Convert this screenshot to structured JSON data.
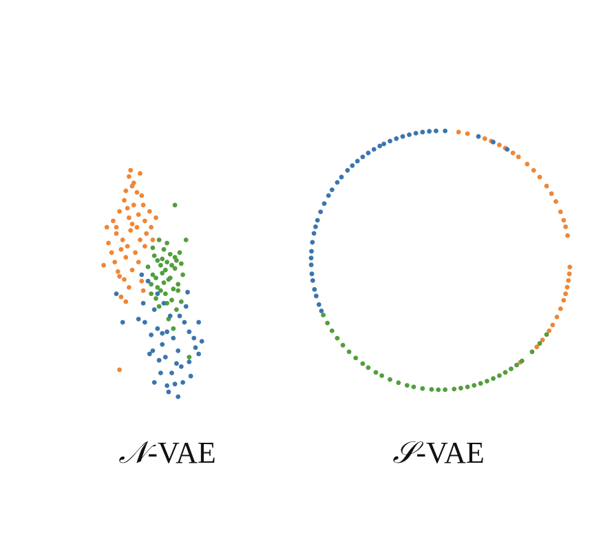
{
  "colors": {
    "orange": "#ef8636",
    "green": "#519e3e",
    "blue": "#3b75af",
    "background": "#ffffff",
    "text": "#111111"
  },
  "chart_data": [
    {
      "type": "scatter",
      "name_symbol": "𝒩",
      "name_suffix": "-VAE",
      "grid": false,
      "legend": "none",
      "series": [
        {
          "color_key": "orange",
          "points": [
            [
              -1.3,
              1.0
            ],
            [
              -1.1,
              1.2
            ],
            [
              -1.0,
              0.8
            ],
            [
              -1.25,
              0.5
            ],
            [
              -0.9,
              1.5
            ],
            [
              -0.75,
              1.85
            ],
            [
              -0.7,
              2.15
            ],
            [
              -0.65,
              1.6
            ],
            [
              -0.85,
              0.3
            ],
            [
              -1.15,
              0.2
            ],
            [
              -0.55,
              0.9
            ],
            [
              -0.6,
              1.3
            ],
            [
              -0.8,
              0.6
            ],
            [
              -1.05,
              -0.1
            ],
            [
              -0.95,
              -0.4
            ],
            [
              -1.4,
              -0.2
            ],
            [
              -0.45,
              1.7
            ],
            [
              -0.5,
              2.3
            ],
            [
              -0.3,
              1.4
            ],
            [
              -0.35,
              1.0
            ],
            [
              -0.25,
              0.6
            ],
            [
              -0.4,
              0.2
            ],
            [
              -0.7,
              0.05
            ],
            [
              -0.9,
              -0.55
            ],
            [
              -0.6,
              2.6
            ],
            [
              -0.55,
              2.8
            ],
            [
              -0.45,
              2.4
            ],
            [
              -0.35,
              2.1
            ],
            [
              -0.2,
              2.0
            ],
            [
              -0.15,
              1.7
            ],
            [
              -0.1,
              1.2
            ],
            [
              -0.05,
              0.8
            ],
            [
              -0.1,
              0.4
            ],
            [
              -0.3,
              -0.1
            ],
            [
              -0.5,
              -0.35
            ],
            [
              -0.75,
              -0.65
            ],
            [
              -0.6,
              -0.9
            ],
            [
              -0.7,
              -1.35
            ],
            [
              -0.85,
              -1.2
            ],
            [
              -0.9,
              -3.5
            ],
            [
              -0.2,
              -0.7
            ],
            [
              -0.15,
              -1.0
            ],
            [
              0.05,
              1.5
            ],
            [
              0.1,
              1.0
            ],
            [
              0.15,
              0.6
            ],
            [
              0.25,
              1.3
            ],
            [
              -0.25,
              2.7
            ],
            [
              -0.5,
              1.1
            ],
            [
              -0.65,
              0.4
            ],
            [
              -1.0,
              1.0
            ]
          ]
        },
        {
          "color_key": "green",
          "points": [
            [
              0.85,
              1.7
            ],
            [
              1.2,
              0.6
            ],
            [
              0.35,
              0.6
            ],
            [
              0.5,
              0.3
            ],
            [
              0.6,
              -0.1
            ],
            [
              0.7,
              -0.6
            ],
            [
              0.85,
              -0.3
            ],
            [
              0.95,
              -0.8
            ],
            [
              1.05,
              -0.15
            ],
            [
              0.45,
              -0.45
            ],
            [
              0.3,
              -0.9
            ],
            [
              0.55,
              -1.1
            ],
            [
              0.75,
              -1.3
            ],
            [
              0.9,
              -1.6
            ],
            [
              0.65,
              -1.9
            ],
            [
              0.4,
              -0.2
            ],
            [
              0.2,
              0.1
            ],
            [
              0.15,
              -0.5
            ],
            [
              0.25,
              -1.25
            ],
            [
              0.8,
              -2.2
            ],
            [
              1.3,
              -3.1
            ],
            [
              1.0,
              0.2
            ],
            [
              0.7,
              0.15
            ],
            [
              0.5,
              -0.75
            ],
            [
              0.35,
              -1.5
            ],
            [
              0.1,
              -0.8
            ],
            [
              0.95,
              -1.0
            ],
            [
              1.1,
              -0.5
            ],
            [
              0.6,
              -1.4
            ],
            [
              0.3,
              -0.05
            ],
            [
              0.45,
              0.0
            ],
            [
              0.8,
              -0.95
            ],
            [
              0.55,
              -0.35
            ],
            [
              0.65,
              -0.65
            ],
            [
              1.05,
              -1.35
            ],
            [
              0.15,
              0.35
            ],
            [
              0.0,
              -0.25
            ],
            [
              0.9,
              -0.05
            ],
            [
              0.4,
              -1.0
            ],
            [
              0.75,
              -0.2
            ],
            [
              0.1,
              -1.1
            ],
            [
              0.6,
              0.5
            ],
            [
              0.85,
              0.05
            ],
            [
              0.25,
              -0.6
            ]
          ]
        },
        {
          "color_key": "blue",
          "points": [
            [
              -0.2,
              -0.5
            ],
            [
              -1.0,
              -1.1
            ],
            [
              -0.8,
              -2.0
            ],
            [
              0.0,
              -0.7
            ],
            [
              0.2,
              -1.6
            ],
            [
              0.3,
              -2.2
            ],
            [
              0.45,
              -2.7
            ],
            [
              0.6,
              -2.3
            ],
            [
              0.8,
              -2.5
            ],
            [
              1.0,
              -1.8
            ],
            [
              1.2,
              -1.5
            ],
            [
              1.3,
              -2.3
            ],
            [
              1.5,
              -2.8
            ],
            [
              1.6,
              -3.0
            ],
            [
              1.25,
              -1.05
            ],
            [
              0.7,
              -1.8
            ],
            [
              0.55,
              -3.1
            ],
            [
              0.9,
              -3.3
            ],
            [
              0.35,
              -3.2
            ],
            [
              0.4,
              -3.6
            ],
            [
              0.2,
              -3.9
            ],
            [
              1.05,
              -3.4
            ],
            [
              0.85,
              -3.95
            ],
            [
              0.65,
              -4.2
            ],
            [
              1.35,
              -3.7
            ],
            [
              0.1,
              -2.4
            ],
            [
              -0.1,
              -2.0
            ],
            [
              -0.3,
              -1.9
            ],
            [
              0.95,
              -2.9
            ],
            [
              1.15,
              -2.0
            ],
            [
              1.45,
              -2.5
            ],
            [
              0.5,
              -1.4
            ],
            [
              0.3,
              -1.1
            ],
            [
              0.75,
              -3.6
            ],
            [
              0.15,
              -2.9
            ],
            [
              -0.15,
              -1.4
            ],
            [
              1.6,
              -2.0
            ],
            [
              1.7,
              -2.6
            ],
            [
              0.05,
              -3.0
            ],
            [
              1.1,
              -3.9
            ],
            [
              0.6,
              -4.0
            ],
            [
              0.95,
              -4.35
            ],
            [
              0.45,
              -2.35
            ],
            [
              1.3,
              -3.25
            ]
          ]
        }
      ]
    },
    {
      "type": "scatter",
      "name_symbol": "𝒮",
      "name_suffix": "-VAE",
      "grid": false,
      "legend": "none",
      "series": [
        {
          "color_key": "orange",
          "angles_deg": [
            82,
            78,
            70,
            67,
            63,
            60,
            56,
            53,
            48,
            44,
            40,
            35,
            31,
            27,
            22,
            18,
            15,
            11,
            -3,
            -6,
            -9,
            -12,
            -15,
            -18,
            -22,
            -26,
            -30,
            -33,
            -38,
            -42,
            -45,
            -52,
            -60
          ]
        },
        {
          "color_key": "blue",
          "angles_deg": [
            92,
            95,
            98,
            101,
            104,
            107,
            110,
            113,
            116,
            118,
            121,
            124,
            127,
            130,
            133,
            136,
            140,
            143,
            147,
            150,
            154,
            158,
            162,
            165,
            168,
            172,
            176,
            179,
            182,
            186,
            189,
            193,
            196,
            200,
            203,
            66,
            59,
            88,
            73
          ]
        },
        {
          "color_key": "green",
          "angles_deg": [
            205,
            209,
            213,
            217,
            221,
            225,
            229,
            233,
            236,
            240,
            243,
            247,
            251,
            255,
            258,
            262,
            266,
            269,
            272,
            276,
            279,
            282,
            285,
            288,
            291,
            294,
            297,
            300,
            303,
            306,
            309,
            315,
            320,
            325
          ]
        }
      ]
    }
  ]
}
